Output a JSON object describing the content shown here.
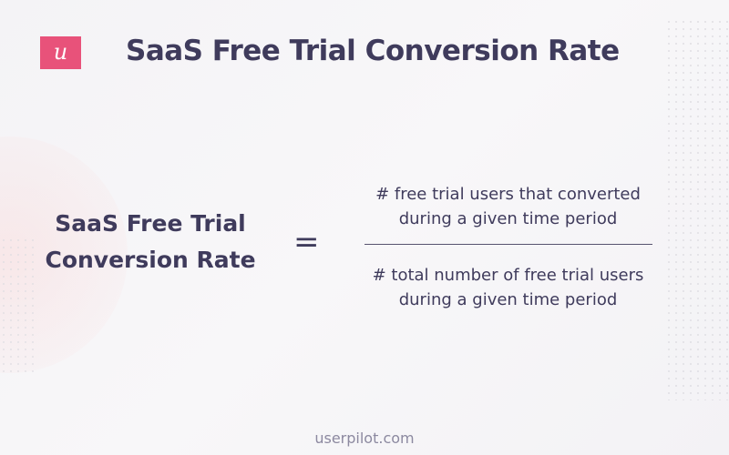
{
  "logo": "u",
  "title": "SaaS Free Trial Conversion Rate",
  "formula": {
    "lhs": [
      "SaaS Free Trial",
      "Conversion Rate"
    ],
    "operator": "=",
    "numerator": [
      "# free trial users that converted",
      "during a given time period"
    ],
    "denominator": [
      "# total number of free trial users",
      "during a given time period"
    ]
  },
  "footer": "userpilot.com"
}
